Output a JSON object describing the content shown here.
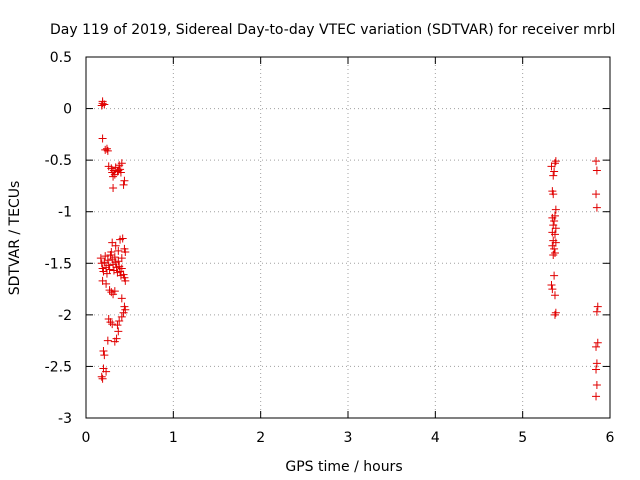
{
  "chart_data": {
    "type": "scatter",
    "title": "Day 119 of 2019, Sidereal Day-to-day VTEC variation (SDTVAR) for receiver mrbl",
    "xlabel": "GPS time / hours",
    "ylabel": "SDTVAR / TECUs",
    "xlim": [
      0,
      6
    ],
    "ylim": [
      -3,
      0.5
    ],
    "x_ticks": [
      "0",
      "1",
      "2",
      "3",
      "4",
      "5",
      "6"
    ],
    "y_ticks": [
      "0.5",
      "0",
      "-0.5",
      "-1",
      "-1.5",
      "-2",
      "-2.5",
      "-3"
    ],
    "grid": true,
    "marker": "+",
    "series": [
      {
        "name": "SDTVAR",
        "color": "#e00000",
        "points": [
          [
            0.19,
            0.07
          ],
          [
            0.19,
            0.05
          ],
          [
            0.18,
            0.03
          ],
          [
            0.21,
            0.04
          ],
          [
            0.19,
            -0.29
          ],
          [
            0.22,
            -0.4
          ],
          [
            0.24,
            -0.39
          ],
          [
            0.25,
            -0.41
          ],
          [
            0.26,
            -0.56
          ],
          [
            0.29,
            -0.58
          ],
          [
            0.3,
            -0.62
          ],
          [
            0.31,
            -0.66
          ],
          [
            0.32,
            -0.6
          ],
          [
            0.34,
            -0.57
          ],
          [
            0.36,
            -0.61
          ],
          [
            0.38,
            -0.55
          ],
          [
            0.4,
            -0.62
          ],
          [
            0.41,
            -0.53
          ],
          [
            0.44,
            -0.7
          ],
          [
            0.43,
            -0.74
          ],
          [
            0.31,
            -0.77
          ],
          [
            0.33,
            -0.64
          ],
          [
            0.37,
            -0.6
          ],
          [
            0.39,
            -0.59
          ],
          [
            0.3,
            -1.3
          ],
          [
            0.34,
            -1.33
          ],
          [
            0.37,
            -1.38
          ],
          [
            0.39,
            -1.27
          ],
          [
            0.42,
            -1.26
          ],
          [
            0.44,
            -1.36
          ],
          [
            0.45,
            -1.39
          ],
          [
            0.41,
            -1.45
          ],
          [
            0.17,
            -1.45
          ],
          [
            0.18,
            -1.5
          ],
          [
            0.19,
            -1.55
          ],
          [
            0.2,
            -1.58
          ],
          [
            0.21,
            -1.49
          ],
          [
            0.22,
            -1.43
          ],
          [
            0.23,
            -1.54
          ],
          [
            0.24,
            -1.6
          ],
          [
            0.25,
            -1.47
          ],
          [
            0.26,
            -1.52
          ],
          [
            0.27,
            -1.56
          ],
          [
            0.28,
            -1.42
          ],
          [
            0.29,
            -1.39
          ],
          [
            0.3,
            -1.46
          ],
          [
            0.31,
            -1.51
          ],
          [
            0.32,
            -1.57
          ],
          [
            0.33,
            -1.44
          ],
          [
            0.34,
            -1.49
          ],
          [
            0.35,
            -1.54
          ],
          [
            0.36,
            -1.59
          ],
          [
            0.37,
            -1.48
          ],
          [
            0.38,
            -1.53
          ],
          [
            0.39,
            -1.58
          ],
          [
            0.4,
            -1.62
          ],
          [
            0.41,
            -1.55
          ],
          [
            0.43,
            -1.61
          ],
          [
            0.45,
            -1.67
          ],
          [
            0.44,
            -1.64
          ],
          [
            0.19,
            -1.67
          ],
          [
            0.23,
            -1.7
          ],
          [
            0.27,
            -1.76
          ],
          [
            0.29,
            -1.78
          ],
          [
            0.31,
            -1.8
          ],
          [
            0.33,
            -1.77
          ],
          [
            0.41,
            -1.84
          ],
          [
            0.44,
            -1.92
          ],
          [
            0.45,
            -1.95
          ],
          [
            0.43,
            -1.98
          ],
          [
            0.41,
            -2.02
          ],
          [
            0.38,
            -2.06
          ],
          [
            0.36,
            -2.1
          ],
          [
            0.26,
            -2.04
          ],
          [
            0.28,
            -2.07
          ],
          [
            0.3,
            -2.09
          ],
          [
            0.37,
            -2.16
          ],
          [
            0.35,
            -2.23
          ],
          [
            0.33,
            -2.26
          ],
          [
            0.25,
            -2.25
          ],
          [
            0.2,
            -2.35
          ],
          [
            0.21,
            -2.39
          ],
          [
            0.2,
            -2.52
          ],
          [
            0.23,
            -2.55
          ],
          [
            0.18,
            -2.6
          ],
          [
            0.19,
            -2.62
          ],
          [
            5.33,
            -0.56
          ],
          [
            5.37,
            -0.53
          ],
          [
            5.38,
            -0.51
          ],
          [
            5.36,
            -0.61
          ],
          [
            5.35,
            -0.65
          ],
          [
            5.34,
            -0.8
          ],
          [
            5.35,
            -0.83
          ],
          [
            5.38,
            -0.98
          ],
          [
            5.37,
            -1.04
          ],
          [
            5.34,
            -1.06
          ],
          [
            5.36,
            -1.09
          ],
          [
            5.35,
            -1.13
          ],
          [
            5.38,
            -1.16
          ],
          [
            5.34,
            -1.2
          ],
          [
            5.37,
            -1.22
          ],
          [
            5.35,
            -1.28
          ],
          [
            5.38,
            -1.3
          ],
          [
            5.34,
            -1.33
          ],
          [
            5.36,
            -1.36
          ],
          [
            5.37,
            -1.4
          ],
          [
            5.35,
            -1.42
          ],
          [
            5.36,
            -1.62
          ],
          [
            5.33,
            -1.71
          ],
          [
            5.34,
            -1.75
          ],
          [
            5.37,
            -1.81
          ],
          [
            5.38,
            -1.98
          ],
          [
            5.37,
            -2.0
          ],
          [
            5.84,
            -0.51
          ],
          [
            5.85,
            -0.6
          ],
          [
            5.84,
            -0.83
          ],
          [
            5.85,
            -0.96
          ],
          [
            5.86,
            -1.92
          ],
          [
            5.85,
            -1.97
          ],
          [
            5.86,
            -2.27
          ],
          [
            5.84,
            -2.31
          ],
          [
            5.85,
            -2.47
          ],
          [
            5.84,
            -2.53
          ],
          [
            5.85,
            -2.68
          ],
          [
            5.84,
            -2.79
          ]
        ]
      }
    ]
  }
}
